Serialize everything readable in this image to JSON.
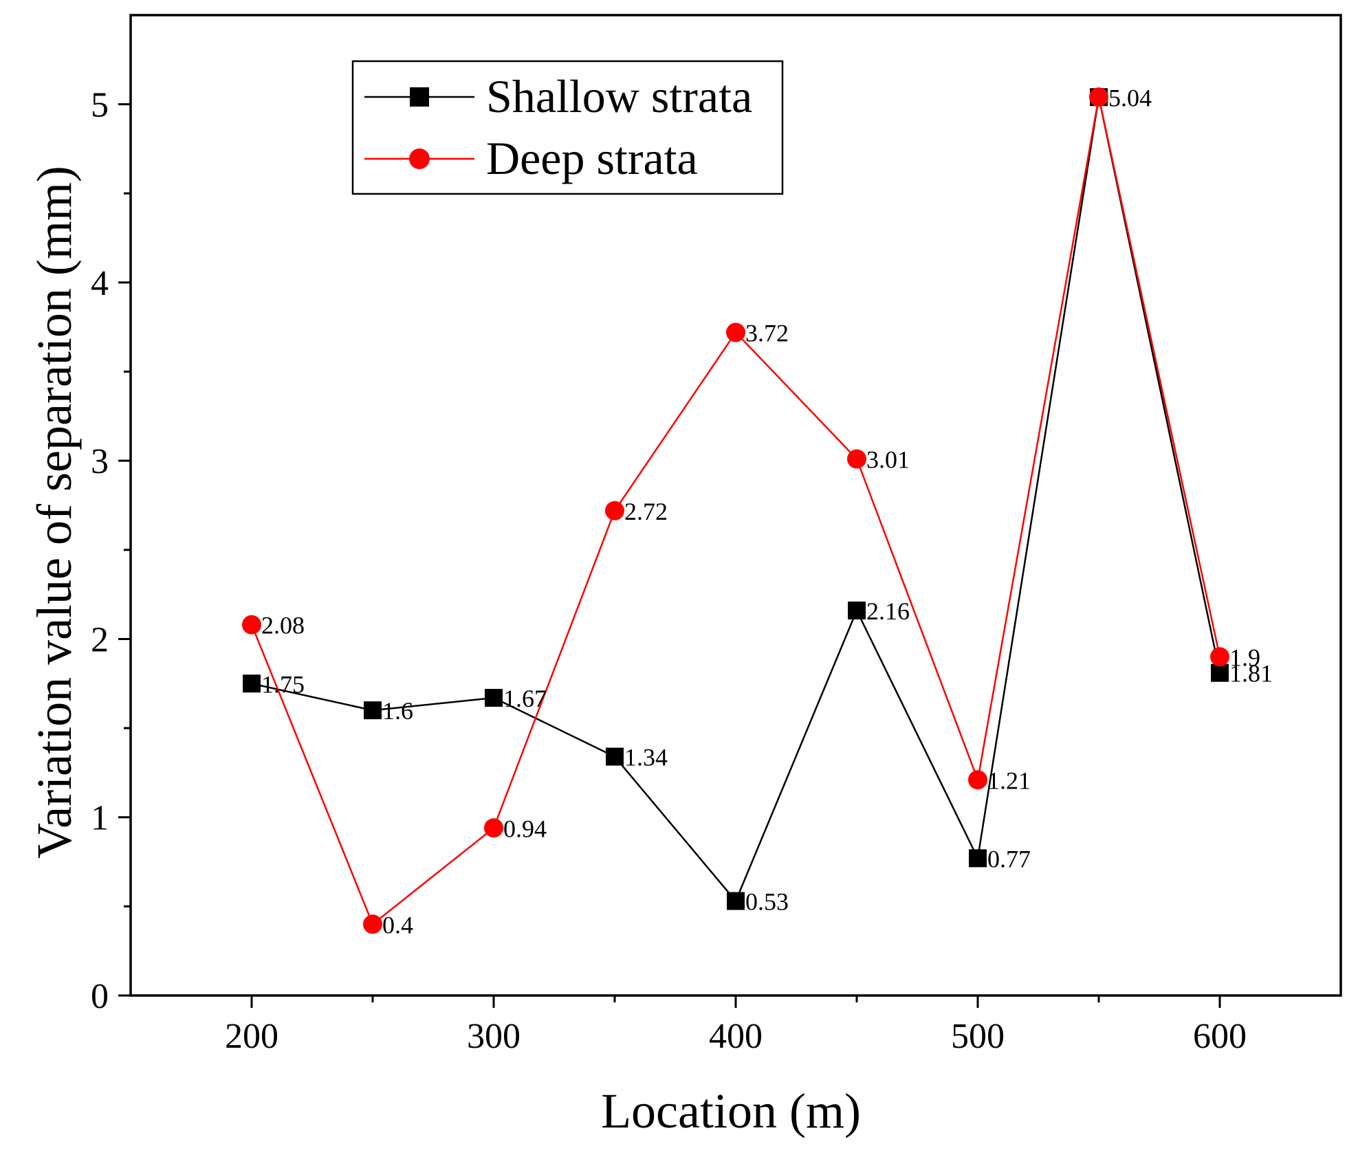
{
  "chart_data": {
    "type": "line",
    "title": "",
    "xlabel": "Location (m)",
    "ylabel": "Variation value of separation (mm)",
    "xlim": [
      150,
      650
    ],
    "ylim": [
      0,
      5.5
    ],
    "xticks": [
      200,
      300,
      400,
      500,
      600
    ],
    "xtick_labels": [
      "200",
      "300",
      "400",
      "500",
      "600"
    ],
    "x_minor_ticks": [
      250,
      350,
      450,
      550
    ],
    "yticks": [
      0,
      1,
      2,
      3,
      4,
      5
    ],
    "ytick_labels": [
      "0",
      "1",
      "2",
      "3",
      "4",
      "5"
    ],
    "y_minor_ticks": [
      0.5,
      1.5,
      2.5,
      3.5,
      4.5
    ],
    "grid": false,
    "legend_position": "top-left",
    "x": [
      200,
      250,
      300,
      350,
      400,
      450,
      500,
      550,
      600
    ],
    "series": [
      {
        "name": "Shallow strata",
        "color": "#000000",
        "marker": "square",
        "values": [
          1.75,
          1.6,
          1.67,
          1.34,
          0.53,
          2.16,
          0.77,
          5.04,
          1.81
        ],
        "labels": [
          "1.75",
          "1.6",
          "1.67",
          "1.34",
          "0.53",
          "2.16",
          "0.77",
          "",
          "1.81"
        ]
      },
      {
        "name": "Deep strata",
        "color": "#ff0000",
        "marker": "circle",
        "values": [
          2.08,
          0.4,
          0.94,
          2.72,
          3.72,
          3.01,
          1.21,
          5.04,
          1.9
        ],
        "labels": [
          "2.08",
          "0.4",
          "0.94",
          "2.72",
          "3.72",
          "3.01",
          "1.21",
          "5.04",
          "1.9"
        ]
      }
    ]
  }
}
